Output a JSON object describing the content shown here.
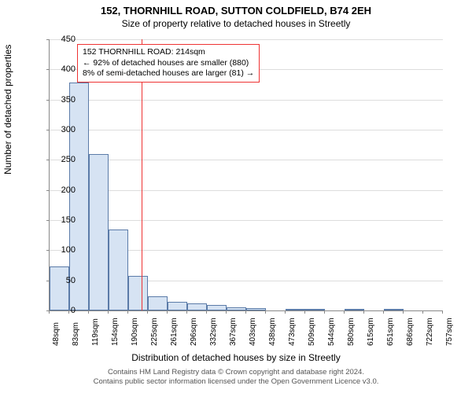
{
  "title_main": "152, THORNHILL ROAD, SUTTON COLDFIELD, B74 2EH",
  "title_sub": "Size of property relative to detached houses in Streetly",
  "y_axis_label": "Number of detached properties",
  "x_axis_label": "Distribution of detached houses by size in Streetly",
  "footer_line1": "Contains HM Land Registry data © Crown copyright and database right 2024.",
  "footer_line2": "Contains public sector information licensed under the Open Government Licence v3.0.",
  "annotation": {
    "line1": "152 THORNHILL ROAD: 214sqm",
    "line2": "← 92% of detached houses are smaller (880)",
    "line3": "8% of semi-detached houses are larger (81) →"
  },
  "chart": {
    "type": "bar",
    "ylim": [
      0,
      450
    ],
    "ytick_step": 50,
    "bar_fill": "#d6e3f3",
    "bar_border": "#5b7ba8",
    "grid_color": "#dddddd",
    "axis_color": "#888888",
    "marker_color": "#e33",
    "marker_x_sqm": 214,
    "x_start_sqm": 48,
    "x_bin_width_sqm": 35.45,
    "x_labels": [
      "48sqm",
      "83sqm",
      "119sqm",
      "154sqm",
      "190sqm",
      "225sqm",
      "261sqm",
      "296sqm",
      "332sqm",
      "367sqm",
      "403sqm",
      "438sqm",
      "473sqm",
      "509sqm",
      "544sqm",
      "580sqm",
      "615sqm",
      "651sqm",
      "686sqm",
      "722sqm",
      "757sqm"
    ],
    "values": [
      73,
      378,
      260,
      135,
      58,
      23,
      14,
      12,
      9,
      5,
      4,
      0,
      2,
      3,
      0,
      1,
      0,
      1,
      0,
      0
    ],
    "title_fontsize": 13,
    "sub_fontsize": 12,
    "label_fontsize": 12,
    "tick_fontsize": 11,
    "annotation_fontsize": 10.5,
    "footer_fontsize": 9.5
  }
}
